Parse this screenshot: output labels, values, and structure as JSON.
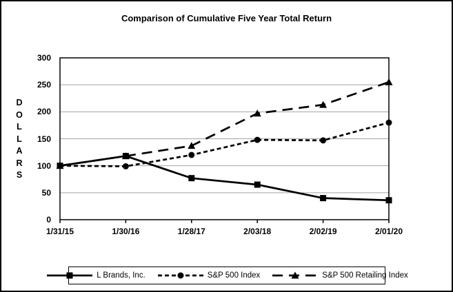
{
  "title": "Comparison of Cumulative Five Year Total Return",
  "chart_data": {
    "type": "line",
    "title": "Comparison of Cumulative Five Year Total Return",
    "categories": [
      "1/31/15",
      "1/30/16",
      "1/28/17",
      "2/03/18",
      "2/02/19",
      "2/01/20"
    ],
    "series": [
      {
        "name": "L Brands, Inc.",
        "values": [
          100,
          118,
          77,
          65,
          40,
          36
        ],
        "line": "solid",
        "marker": "square",
        "color": "#000000"
      },
      {
        "name": "S&P 500 Index",
        "values": [
          100,
          99,
          120,
          148,
          147,
          180
        ],
        "line": "dash",
        "marker": "circle",
        "color": "#000000"
      },
      {
        "name": "S&P 500 Retailing Index",
        "values": [
          100,
          118,
          137,
          197,
          213,
          255
        ],
        "line": "long-dash",
        "marker": "triangle",
        "color": "#000000"
      }
    ],
    "xlabel": "",
    "ylabel": "DOLLARS",
    "yticks": [
      0,
      50,
      100,
      150,
      200,
      250,
      300
    ],
    "ylim": [
      0,
      300
    ],
    "grid": "horizontal",
    "gridline_color": "#a3a3a3",
    "axis_color": "#000000",
    "legend_position": "bottom"
  }
}
